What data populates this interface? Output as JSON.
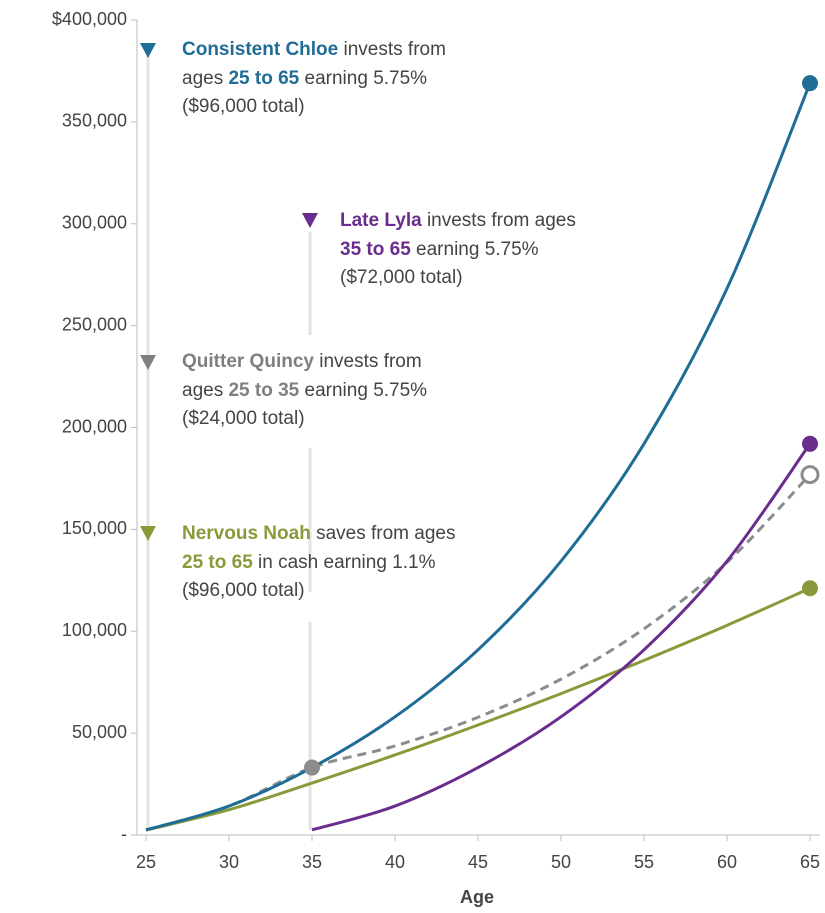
{
  "chart_data": {
    "type": "line",
    "xlabel": "Age",
    "x": [
      25,
      30,
      35,
      40,
      45,
      50,
      55,
      60,
      65
    ],
    "xlim": [
      25,
      65
    ],
    "xticks": [
      25,
      30,
      35,
      40,
      45,
      50,
      55,
      60,
      65
    ],
    "ylim": [
      0,
      400000
    ],
    "yticks": [
      {
        "value": 0,
        "label": "-"
      },
      {
        "value": 50000,
        "label": "50,000"
      },
      {
        "value": 100000,
        "label": "100,000"
      },
      {
        "value": 150000,
        "label": "150,000"
      },
      {
        "value": 200000,
        "label": "200,000"
      },
      {
        "value": 250000,
        "label": "250,000"
      },
      {
        "value": 300000,
        "label": "300,000"
      },
      {
        "value": 350000,
        "label": "350,000"
      },
      {
        "value": 400000,
        "label": "$400,000"
      }
    ],
    "series": [
      {
        "name": "Consistent Chloe",
        "color": "#1f6d96",
        "values": [
          2500,
          14200,
          33100,
          58000,
          90900,
          134400,
          192000,
          268200,
          369000
        ]
      },
      {
        "name": "Late Lyla",
        "color": "#6a2d8e",
        "values": [
          null,
          null,
          2500,
          14200,
          33100,
          58000,
          90900,
          134400,
          192000
        ]
      },
      {
        "name": "Quitter Quincy",
        "color": "#8c8c8c",
        "dashed": true,
        "values": [
          2500,
          14200,
          33100,
          43700,
          57800,
          76500,
          101200,
          133800,
          176900
        ]
      },
      {
        "name": "Nervous Noah",
        "color": "#8a9a3a",
        "values": [
          2400,
          12400,
          25500,
          39300,
          54000,
          69400,
          85700,
          102900,
          121100
        ]
      }
    ],
    "annotations": [
      {
        "lines": [
          [
            "Consistent Chloe",
            " invests from"
          ],
          [
            "ages ",
            "25 to 65",
            " earning 5.75%"
          ],
          [
            "($96,000 total)"
          ]
        ]
      },
      {
        "lines": [
          [
            "Late Lyla",
            " invests from ages"
          ],
          [
            "35 to 65",
            " earning 5.75%"
          ],
          [
            "($72,000 total)"
          ]
        ]
      },
      {
        "lines": [
          [
            "Quitter Quincy",
            " invests from"
          ],
          [
            "ages ",
            "25 to 35",
            " earning 5.75%"
          ],
          [
            "($24,000 total)"
          ]
        ]
      },
      {
        "lines": [
          [
            "Nervous Noah",
            " saves from ages"
          ],
          [
            "25 to 65",
            " in cash earning 1.1%"
          ],
          [
            "($96,000 total)"
          ]
        ]
      }
    ]
  }
}
